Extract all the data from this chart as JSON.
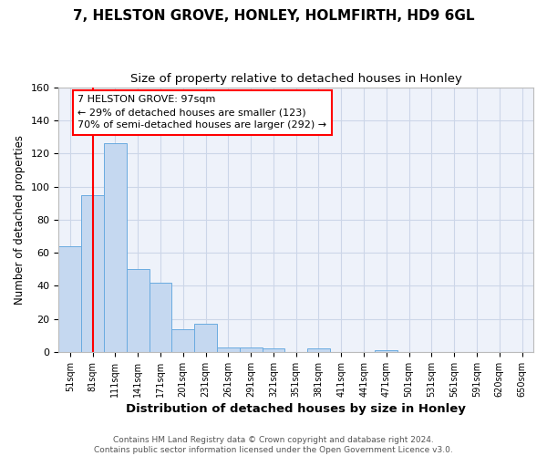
{
  "title": "7, HELSTON GROVE, HONLEY, HOLMFIRTH, HD9 6GL",
  "subtitle": "Size of property relative to detached houses in Honley",
  "xlabel": "Distribution of detached houses by size in Honley",
  "ylabel": "Number of detached properties",
  "bar_labels": [
    "51sqm",
    "81sqm",
    "111sqm",
    "141sqm",
    "171sqm",
    "201sqm",
    "231sqm",
    "261sqm",
    "291sqm",
    "321sqm",
    "351sqm",
    "381sqm",
    "411sqm",
    "441sqm",
    "471sqm",
    "501sqm",
    "531sqm",
    "561sqm",
    "591sqm",
    "620sqm",
    "650sqm"
  ],
  "bar_heights": [
    64,
    95,
    126,
    50,
    42,
    14,
    17,
    3,
    3,
    2,
    0,
    2,
    0,
    0,
    1,
    0,
    0,
    0,
    0,
    0,
    0
  ],
  "bar_color": "#c5d8f0",
  "bar_edge_color": "#6aabe0",
  "vline_x": 1.53,
  "vline_color": "red",
  "annotation_text": "7 HELSTON GROVE: 97sqm\n← 29% of detached houses are smaller (123)\n70% of semi-detached houses are larger (292) →",
  "ylim": [
    0,
    160
  ],
  "yticks": [
    0,
    20,
    40,
    60,
    80,
    100,
    120,
    140,
    160
  ],
  "grid_color": "#ccd6e8",
  "bg_color": "#eef2fa",
  "footer": "Contains HM Land Registry data © Crown copyright and database right 2024.\nContains public sector information licensed under the Open Government Licence v3.0.",
  "title_fontsize": 11,
  "subtitle_fontsize": 9.5,
  "xlabel_fontsize": 9.5,
  "ylabel_fontsize": 8.5,
  "footer_fontsize": 6.5
}
